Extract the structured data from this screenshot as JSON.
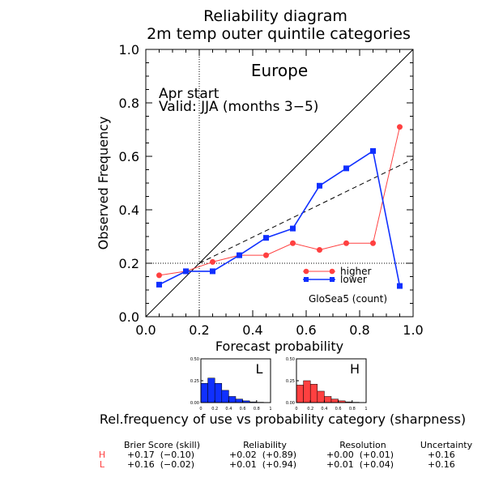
{
  "title_line1": "Reliability diagram",
  "title_line2": "2m temp outer quintile categories",
  "chart_data": [
    {
      "type": "line",
      "xlabel": "Forecast probability",
      "ylabel": "Observed Frequency",
      "xlim": [
        0.0,
        1.0
      ],
      "ylim": [
        0.0,
        1.0
      ],
      "xticks": [
        "0.0",
        "0.2",
        "0.4",
        "0.6",
        "0.8",
        "1.0"
      ],
      "yticks": [
        "0.0",
        "0.2",
        "0.4",
        "0.6",
        "0.8",
        "1.0"
      ],
      "region": "Europe",
      "start_label": "Apr start",
      "valid_label": "Valid: JJA (months 3−5)",
      "model_label": "GloSea5 (count)",
      "climatology_x": 0.2,
      "climatology_y": 0.2,
      "series": [
        {
          "name": "higher",
          "color": "#ff4040",
          "marker": "circle",
          "x": [
            0.05,
            0.15,
            0.25,
            0.35,
            0.45,
            0.55,
            0.65,
            0.75,
            0.85,
            0.95
          ],
          "y": [
            0.155,
            0.17,
            0.205,
            0.23,
            0.23,
            0.275,
            0.25,
            0.275,
            0.275,
            0.71
          ]
        },
        {
          "name": "lower",
          "color": "#1030ff",
          "marker": "square",
          "x": [
            0.05,
            0.15,
            0.25,
            0.35,
            0.45,
            0.55,
            0.65,
            0.75,
            0.85,
            0.95
          ],
          "y": [
            0.12,
            0.17,
            0.17,
            0.23,
            0.295,
            0.33,
            0.49,
            0.555,
            0.62,
            0.115
          ]
        }
      ],
      "reference_lines": [
        {
          "style": "solid",
          "x": [
            0,
            1
          ],
          "y": [
            0,
            1
          ]
        },
        {
          "style": "dashed",
          "x": [
            0.2,
            1.0
          ],
          "y": [
            0.2,
            0.59
          ]
        }
      ]
    },
    {
      "type": "bar",
      "label": "L",
      "color": "#1030ff",
      "categories": [
        "0.05",
        "0.15",
        "0.25",
        "0.35",
        "0.45",
        "0.55",
        "0.65",
        "0.75",
        "0.85",
        "0.95"
      ],
      "values": [
        0.22,
        0.28,
        0.22,
        0.14,
        0.07,
        0.04,
        0.02,
        0.008,
        0.004,
        0.002
      ],
      "yticks": [
        "0.00",
        "0.25",
        "0.50"
      ],
      "xticks": [
        "0",
        "0.2",
        "0.4",
        "0.6",
        "0.8",
        "1"
      ],
      "ylim": [
        0,
        0.5
      ]
    },
    {
      "type": "bar",
      "label": "H",
      "color": "#ff4040",
      "categories": [
        "0.05",
        "0.15",
        "0.25",
        "0.35",
        "0.45",
        "0.55",
        "0.65",
        "0.75",
        "0.85",
        "0.95"
      ],
      "values": [
        0.2,
        0.25,
        0.21,
        0.13,
        0.07,
        0.04,
        0.02,
        0.008,
        0.004,
        0.002
      ],
      "yticks": [
        "0.00",
        "0.25",
        "0.50"
      ],
      "xticks": [
        "0",
        "0.2",
        "0.4",
        "0.6",
        "0.8",
        "1"
      ],
      "ylim": [
        0,
        0.5
      ]
    }
  ],
  "sharpness_caption": "Rel.frequency of use vs probability category (sharpness)",
  "scores": {
    "headers": [
      "Brier Score (skill)",
      "Reliability",
      "Resolution",
      "Uncertainty"
    ],
    "rows": [
      {
        "label": "H",
        "color": "#ff4040",
        "brier": "+0.17  (−0.10)",
        "reliability": "+0.02  (+0.89)",
        "resolution": "+0.00  (+0.01)",
        "uncertainty": "+0.16"
      },
      {
        "label": "L",
        "color": "#ff4040",
        "brier": "+0.16  (−0.02)",
        "reliability": "+0.01  (+0.94)",
        "resolution": "+0.01  (+0.04)",
        "uncertainty": "+0.16"
      }
    ]
  }
}
